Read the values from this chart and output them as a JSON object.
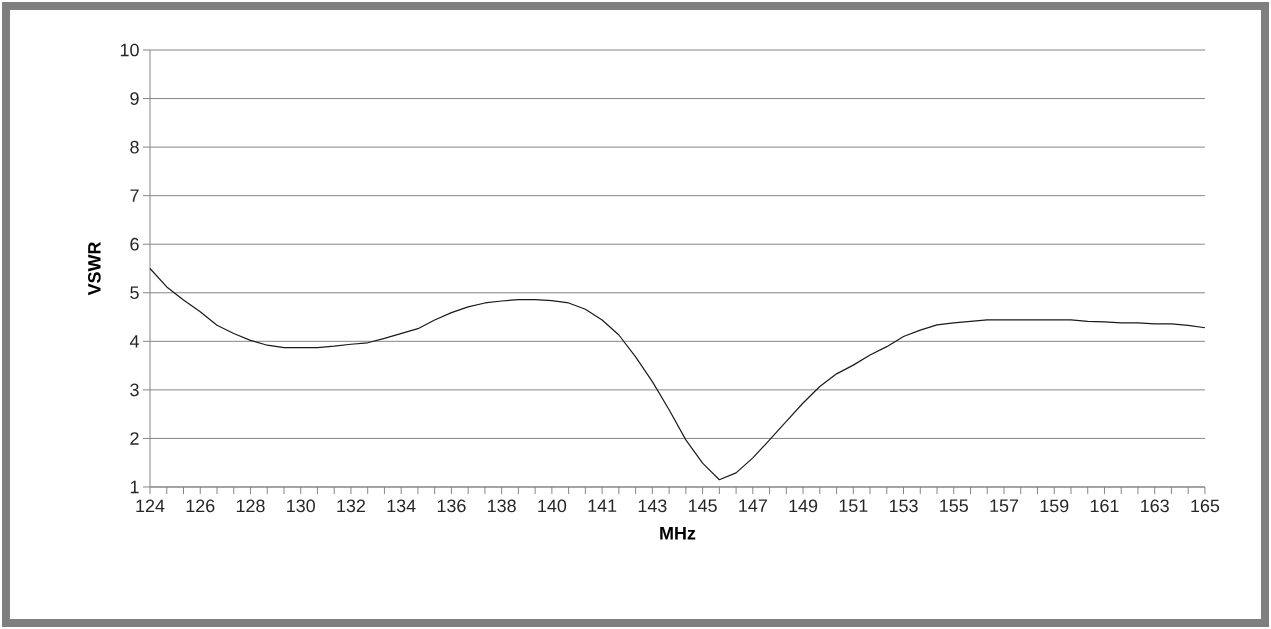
{
  "chart_data": {
    "type": "line",
    "xlabel": "MHz",
    "ylabel": "VSWR",
    "categories": [
      "124",
      null,
      null,
      "126",
      null,
      null,
      "128",
      null,
      null,
      "130",
      null,
      null,
      "132",
      null,
      null,
      "134",
      null,
      null,
      "136",
      null,
      null,
      "138",
      null,
      null,
      "140",
      null,
      null,
      "141",
      null,
      null,
      "143",
      null,
      null,
      "145",
      null,
      null,
      "147",
      null,
      null,
      "149",
      null,
      null,
      "151",
      null,
      null,
      "153",
      null,
      null,
      "155",
      null,
      null,
      "157",
      null,
      null,
      "159",
      null,
      null,
      "161",
      null,
      null,
      "163",
      null,
      null,
      "165"
    ],
    "values": [
      5.5,
      5.12,
      4.85,
      4.61,
      4.33,
      4.16,
      4.02,
      3.92,
      3.87,
      3.87,
      3.87,
      3.9,
      3.94,
      3.97,
      4.06,
      4.16,
      4.26,
      4.44,
      4.59,
      4.71,
      4.79,
      4.83,
      4.86,
      4.86,
      4.84,
      4.79,
      4.66,
      4.44,
      4.13,
      3.68,
      3.17,
      2.59,
      1.97,
      1.49,
      1.15,
      1.29,
      1.6,
      1.97,
      2.35,
      2.73,
      3.07,
      3.33,
      3.51,
      3.72,
      3.89,
      4.1,
      4.23,
      4.34,
      4.38,
      4.41,
      4.44,
      4.44,
      4.44,
      4.44,
      4.44,
      4.44,
      4.41,
      4.4,
      4.38,
      4.38,
      4.36,
      4.36,
      4.33,
      4.28
    ],
    "color": "#1a1a1a",
    "ylim": [
      1,
      10
    ],
    "yticks": [
      1,
      2,
      3,
      4,
      5,
      6,
      7,
      8,
      9,
      10
    ],
    "grid": "y"
  }
}
